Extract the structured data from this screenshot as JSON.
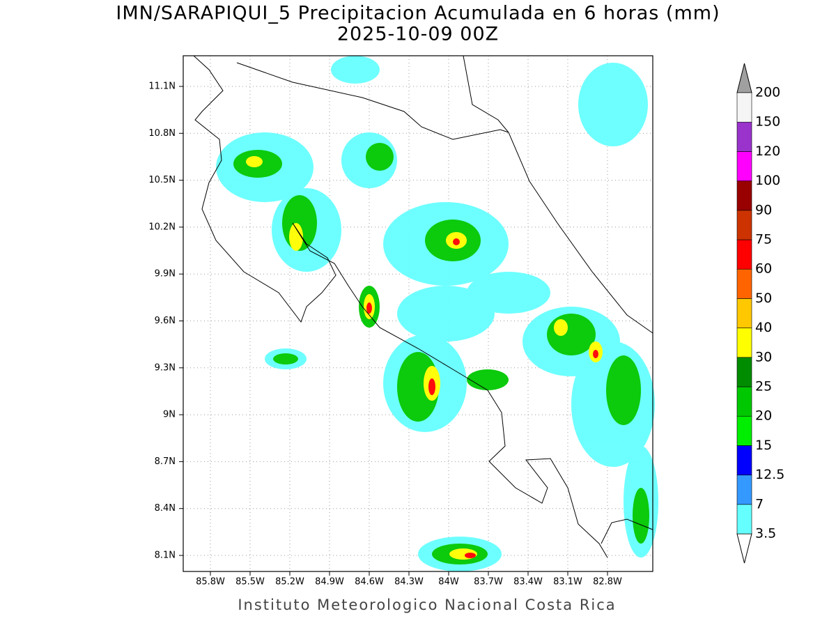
{
  "map": {
    "title": "IMN/SARAPIQUI_5 Precipitacion Acumulada en 6 horas (mm)",
    "subtitle": "2025-10-09 00Z",
    "x_labels": [
      "85.8W",
      "85.5W",
      "85.2W",
      "84.9W",
      "84.6W",
      "84.3W",
      "84W",
      "83.7W",
      "83.4W",
      "83.1W",
      "82.8W"
    ],
    "y_labels": [
      "11.1N",
      "10.8N",
      "10.5N",
      "10.2N",
      "9.9N",
      "9.6N",
      "9.3N",
      "9N",
      "8.7N",
      "8.4N",
      "8.1N"
    ],
    "colorbar": {
      "levels": [
        3.5,
        7,
        12.5,
        15,
        20,
        25,
        30,
        40,
        50,
        60,
        75,
        90,
        100,
        120,
        150,
        200
      ],
      "colors": [
        "#66ffff",
        "#3399ff",
        "#0000ff",
        "#00ee00",
        "#00c800",
        "#008c00",
        "#ffff00",
        "#ffc800",
        "#ff6400",
        "#ff0000",
        "#cc3300",
        "#990000",
        "#ff00ff",
        "#9933cc",
        "#f5f5f5"
      ],
      "under_color": "#ffffff",
      "over_color": "#a0a0a0"
    },
    "credit": "Instituto Meteorologico Nacional Costa Rica"
  }
}
